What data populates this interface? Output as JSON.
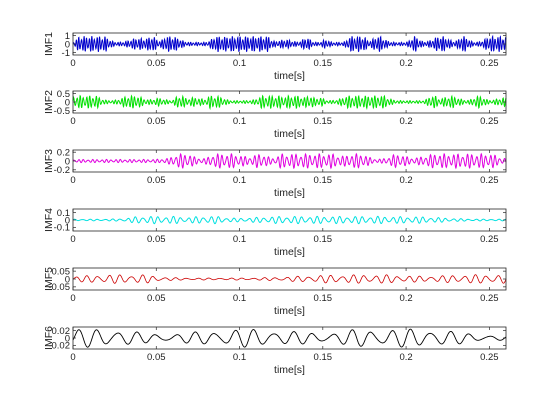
{
  "chart_data": [
    {
      "type": "line",
      "ylabel": "IMF1",
      "xlabel": "time[s]",
      "xlim": [
        0,
        0.26
      ],
      "ylim": [
        -1.3,
        1.3
      ],
      "xticks": [
        "0",
        "0.05",
        "0.1",
        "0.15",
        "0.2",
        "0.25"
      ],
      "yticks": [
        "1",
        "0",
        "-1"
      ],
      "color": "#0000cc",
      "amplitude": 0.75,
      "oscillations_per_second": 640,
      "bursts_per_second": 120,
      "line_width": 1.0,
      "grid": false
    },
    {
      "type": "line",
      "ylabel": "IMF2",
      "xlabel": "time[s]",
      "xlim": [
        0,
        0.26
      ],
      "ylim": [
        -0.65,
        0.65
      ],
      "xticks": [
        "0",
        "0.05",
        "0.1",
        "0.15",
        "0.2",
        "0.25"
      ],
      "yticks": [
        "0.5",
        "0",
        "-0.5"
      ],
      "color": "#00e000",
      "amplitude": 0.3,
      "oscillations_per_second": 520,
      "bursts_per_second": 100,
      "line_width": 1.0,
      "grid": false
    },
    {
      "type": "line",
      "ylabel": "IMF3",
      "xlabel": "time[s]",
      "xlim": [
        0,
        0.26
      ],
      "ylim": [
        -0.25,
        0.25
      ],
      "xticks": [
        "0",
        "0.05",
        "0.1",
        "0.15",
        "0.2",
        "0.25"
      ],
      "yticks": [
        "0.2",
        "0",
        "-0.2"
      ],
      "color": "#e000e0",
      "amplitude": 0.13,
      "oscillations_per_second": 360,
      "bursts_per_second": 60,
      "line_width": 1.0,
      "grid": false
    },
    {
      "type": "line",
      "ylabel": "IMF4",
      "xlabel": "time[s]",
      "xlim": [
        0,
        0.26
      ],
      "ylim": [
        -0.15,
        0.15
      ],
      "xticks": [
        "0",
        "0.05",
        "0.1",
        "0.15",
        "0.2",
        "0.25"
      ],
      "yticks": [
        "0.1",
        "0",
        "-0.1"
      ],
      "color": "#00e0e0",
      "amplitude": 0.04,
      "oscillations_per_second": 220,
      "bursts_per_second": 30,
      "line_width": 1.0,
      "grid": false
    },
    {
      "type": "line",
      "ylabel": "IMF5",
      "xlabel": "time[s]",
      "xlim": [
        0,
        0.26
      ],
      "ylim": [
        -0.07,
        0.07
      ],
      "xticks": [
        "0",
        "0.05",
        "0.1",
        "0.15",
        "0.2",
        "0.25"
      ],
      "yticks": [
        "0.05",
        "0",
        "-0.05"
      ],
      "color": "#cc0000",
      "amplitude": 0.022,
      "oscillations_per_second": 150,
      "bursts_per_second": 18,
      "line_width": 0.8,
      "grid": false
    },
    {
      "type": "line",
      "ylabel": "IMF6",
      "xlabel": "time[s]",
      "xlim": [
        0,
        0.26
      ],
      "ylim": [
        -0.03,
        0.03
      ],
      "xticks": [
        "0",
        "0.05",
        "0.1",
        "0.15",
        "0.2",
        "0.25"
      ],
      "yticks": [
        "0.02",
        "0",
        "-0.02"
      ],
      "color": "#000000",
      "amplitude": 0.02,
      "oscillations_per_second": 85,
      "bursts_per_second": 10,
      "line_width": 0.9,
      "grid": false
    }
  ]
}
